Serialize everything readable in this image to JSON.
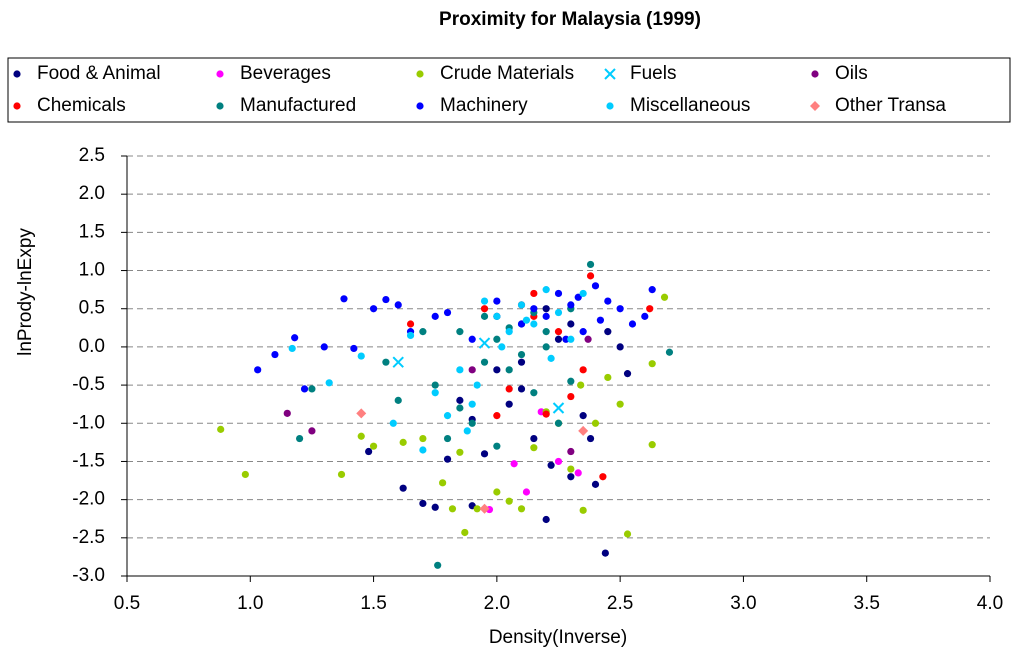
{
  "chart_data": {
    "type": "scatter",
    "title": "Proximity for Malaysia (1999)",
    "x_label": "Density(Inverse)",
    "y_label": "lnPrody-lnExpy",
    "xlim": [
      0.5,
      4.0
    ],
    "xticks": [
      0.5,
      {
        "value": 1,
        "label": "1.0"
      },
      1.5,
      {
        "value": 2,
        "label": "2.0"
      },
      2.5,
      {
        "value": 3,
        "label": "3.0"
      },
      3.5,
      {
        "value": 4,
        "label": "4.0"
      }
    ],
    "ylim": [
      -3.0,
      2.5
    ],
    "yticks": [
      2.5,
      {
        "value": 2,
        "label": "2.0"
      },
      1.5,
      {
        "value": 1,
        "label": "1.0"
      },
      0.5,
      {
        "value": 0,
        "label": "0.0"
      },
      -0.5,
      {
        "value": -1,
        "label": "-1.0"
      },
      -1.5,
      {
        "value": -2,
        "label": "-2.0"
      },
      -2.5,
      {
        "value": -3,
        "label": "-3.0"
      }
    ],
    "grid": true,
    "legend_position": "top",
    "series": [
      {
        "name": "Food & Animal",
        "color": "#000080",
        "marker": "circle",
        "x": [
          1.48,
          1.62,
          1.75,
          1.8,
          1.85,
          1.9,
          1.95,
          2.0,
          2.05,
          2.1,
          2.15,
          2.2,
          2.22,
          2.25,
          2.3,
          2.35,
          2.4,
          2.44,
          2.5,
          2.53,
          1.9,
          2.1,
          2.3,
          2.2,
          1.7,
          2.0,
          2.45,
          2.38
        ],
        "values": [
          -1.37,
          -1.85,
          -2.1,
          -1.47,
          -0.7,
          -2.08,
          -1.4,
          -0.3,
          -0.75,
          -0.2,
          -1.2,
          -2.26,
          -1.55,
          0.1,
          -1.7,
          -0.9,
          -1.8,
          -2.7,
          0.0,
          -0.35,
          -0.95,
          -0.55,
          0.3,
          0.5,
          -2.05,
          0.4,
          0.2,
          -1.2
        ]
      },
      {
        "name": "Beverages",
        "color": "#ff00ff",
        "marker": "circle",
        "x": [
          2.07,
          2.12,
          2.25,
          2.33,
          1.97,
          2.18
        ],
        "values": [
          -1.53,
          -1.9,
          -1.5,
          -1.65,
          -2.13,
          -0.85
        ]
      },
      {
        "name": "Crude Materials",
        "color": "#99cc00",
        "marker": "circle",
        "x": [
          0.88,
          0.98,
          1.37,
          1.45,
          1.5,
          1.62,
          1.7,
          1.78,
          1.82,
          1.87,
          1.92,
          2.0,
          2.05,
          2.1,
          2.15,
          2.2,
          2.3,
          2.35,
          2.4,
          2.5,
          2.53,
          2.63,
          2.68,
          2.63,
          2.45,
          1.85,
          2.25,
          2.34
        ],
        "values": [
          -1.08,
          -1.67,
          -1.67,
          -1.17,
          -1.3,
          -1.25,
          -1.2,
          -1.78,
          -2.12,
          -2.43,
          -2.12,
          -1.9,
          -2.02,
          -2.12,
          -1.32,
          -0.85,
          -1.6,
          -2.14,
          -1.0,
          -0.75,
          -2.45,
          -1.28,
          0.65,
          -0.22,
          -0.4,
          -1.38,
          -1.0,
          -0.5
        ]
      },
      {
        "name": "Fuels",
        "color": "#00ccff",
        "marker": "x",
        "x": [
          1.6,
          2.25,
          1.95
        ],
        "values": [
          -0.2,
          -0.8,
          0.05
        ]
      },
      {
        "name": "Oils",
        "color": "#800080",
        "marker": "circle",
        "x": [
          1.15,
          1.25,
          2.3,
          1.9,
          2.37
        ],
        "values": [
          -0.87,
          -1.1,
          -1.37,
          -0.3,
          0.1
        ]
      },
      {
        "name": "Chemicals",
        "color": "#ff0000",
        "marker": "circle",
        "x": [
          1.65,
          1.95,
          2.05,
          2.1,
          2.15,
          2.2,
          2.3,
          2.38,
          2.43,
          2.62,
          2.0,
          2.15,
          2.25,
          2.35
        ],
        "values": [
          0.3,
          0.5,
          -0.55,
          0.55,
          0.7,
          -0.88,
          -0.65,
          0.93,
          -1.7,
          0.5,
          -0.9,
          0.4,
          0.2,
          -0.3
        ]
      },
      {
        "name": "Manufactured",
        "color": "#008080",
        "marker": "circle",
        "x": [
          1.2,
          1.25,
          1.55,
          1.6,
          1.7,
          1.75,
          1.8,
          1.85,
          1.9,
          1.95,
          2.0,
          2.05,
          2.1,
          2.15,
          2.2,
          2.25,
          2.3,
          2.38,
          2.7,
          1.76,
          1.85,
          2.0,
          2.1,
          2.2,
          2.3,
          2.15,
          1.95,
          2.05
        ],
        "values": [
          -1.2,
          -0.55,
          -0.2,
          -0.7,
          0.2,
          -0.5,
          -1.2,
          0.2,
          -1.0,
          0.4,
          0.1,
          -0.3,
          0.3,
          -0.6,
          0.0,
          -1.0,
          0.5,
          1.08,
          -0.07,
          -2.86,
          -0.8,
          -1.3,
          -0.1,
          0.2,
          -0.45,
          0.45,
          -0.2,
          0.25
        ]
      },
      {
        "name": "Machinery",
        "color": "#0000ff",
        "marker": "circle",
        "x": [
          1.03,
          1.1,
          1.18,
          1.22,
          1.3,
          1.38,
          1.42,
          1.5,
          1.55,
          1.6,
          1.65,
          1.75,
          1.8,
          1.9,
          2.0,
          2.1,
          2.15,
          2.2,
          2.25,
          2.3,
          2.35,
          2.4,
          2.45,
          2.5,
          2.55,
          2.6,
          2.63,
          2.33,
          2.28,
          2.42
        ],
        "values": [
          -0.3,
          -0.1,
          0.12,
          -0.55,
          0.0,
          0.63,
          -0.02,
          0.5,
          0.62,
          0.55,
          0.2,
          0.4,
          0.45,
          0.1,
          0.6,
          0.3,
          0.5,
          0.4,
          0.7,
          0.55,
          0.2,
          0.8,
          0.6,
          0.5,
          0.3,
          0.4,
          0.75,
          0.65,
          0.1,
          0.35
        ]
      },
      {
        "name": "Miscellaneous",
        "color": "#00ccff",
        "marker": "circle",
        "x": [
          1.17,
          1.32,
          1.45,
          1.58,
          1.65,
          1.7,
          1.75,
          1.8,
          1.85,
          1.9,
          1.95,
          2.0,
          2.05,
          2.1,
          2.15,
          2.2,
          2.25,
          2.3,
          2.35,
          1.88,
          1.92,
          2.02,
          2.12,
          2.22
        ],
        "values": [
          -0.02,
          -0.47,
          -0.12,
          -1.0,
          0.15,
          -1.35,
          -0.6,
          -0.9,
          -0.3,
          -0.75,
          0.6,
          0.4,
          0.2,
          0.55,
          0.3,
          0.75,
          0.45,
          0.1,
          0.7,
          -1.1,
          -0.5,
          0.0,
          0.35,
          -0.15
        ]
      },
      {
        "name": "Other Transa",
        "color": "#ff8080",
        "marker": "diamond",
        "x": [
          1.45,
          1.95,
          2.35
        ],
        "values": [
          -0.87,
          -2.12,
          -1.1
        ]
      }
    ]
  }
}
